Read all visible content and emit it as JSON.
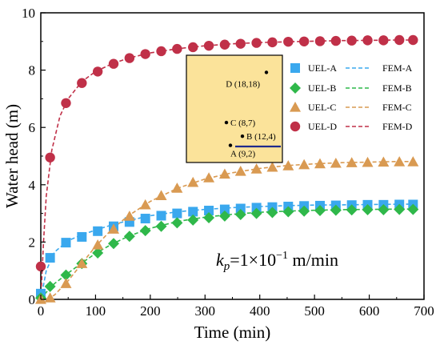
{
  "chart_data": {
    "type": "line",
    "title": "",
    "xlabel": "Time (min)",
    "ylabel": "Water head (m)",
    "xlim": [
      0,
      700
    ],
    "ylim": [
      0,
      10
    ],
    "xticks": [
      0,
      100,
      200,
      300,
      400,
      500,
      600,
      700
    ],
    "yticks": [
      0,
      2,
      4,
      6,
      8,
      10
    ],
    "legend_position": "top-right",
    "grid": false,
    "annotation": {
      "k": "k",
      "sub": "p",
      "text": "=1×10",
      "exp": "−1",
      "unit": " m/min"
    },
    "inset": {
      "points": [
        {
          "label": "D (18,18)",
          "x": 18,
          "y": 18
        },
        {
          "label": "C (8,7)",
          "x": 8,
          "y": 7
        },
        {
          "label": "B (12,4)",
          "x": 12,
          "y": 4
        },
        {
          "label": "A (9,2)",
          "x": 9,
          "y": 2
        }
      ]
    },
    "series": [
      {
        "name": "UEL-A",
        "kind": "marker",
        "marker": "square",
        "color": "#3aa8ee",
        "x": [
          0,
          17,
          46,
          75,
          104,
          133,
          162,
          191,
          220,
          249,
          278,
          307,
          336,
          365,
          394,
          423,
          452,
          481,
          510,
          539,
          568,
          597,
          626,
          655,
          680
        ],
        "y": [
          0.2,
          1.45,
          1.98,
          2.18,
          2.38,
          2.55,
          2.7,
          2.82,
          2.92,
          3.0,
          3.06,
          3.1,
          3.14,
          3.17,
          3.2,
          3.22,
          3.24,
          3.26,
          3.27,
          3.28,
          3.29,
          3.3,
          3.3,
          3.31,
          3.31
        ]
      },
      {
        "name": "UEL-B",
        "kind": "marker",
        "marker": "diamond",
        "color": "#2fb84a",
        "x": [
          0,
          17,
          46,
          75,
          104,
          133,
          162,
          191,
          220,
          249,
          278,
          307,
          336,
          365,
          394,
          423,
          452,
          481,
          510,
          539,
          568,
          597,
          626,
          655,
          680
        ],
        "y": [
          0.05,
          0.45,
          0.85,
          1.25,
          1.62,
          1.95,
          2.2,
          2.4,
          2.55,
          2.67,
          2.77,
          2.85,
          2.91,
          2.96,
          3.0,
          3.03,
          3.06,
          3.08,
          3.1,
          3.11,
          3.12,
          3.13,
          3.13,
          3.14,
          3.14
        ]
      },
      {
        "name": "UEL-C",
        "kind": "marker",
        "marker": "triangle",
        "color": "#d99a52",
        "x": [
          0,
          17,
          46,
          75,
          104,
          133,
          162,
          191,
          220,
          249,
          278,
          307,
          336,
          365,
          394,
          423,
          452,
          481,
          510,
          539,
          568,
          597,
          626,
          655,
          680
        ],
        "y": [
          0.0,
          0.05,
          0.55,
          1.25,
          1.9,
          2.45,
          2.9,
          3.3,
          3.62,
          3.88,
          4.08,
          4.24,
          4.37,
          4.47,
          4.55,
          4.61,
          4.66,
          4.7,
          4.73,
          4.75,
          4.77,
          4.78,
          4.79,
          4.8,
          4.8
        ]
      },
      {
        "name": "UEL-D",
        "kind": "marker",
        "marker": "circle",
        "color": "#c03048",
        "x": [
          0,
          17,
          46,
          75,
          104,
          133,
          162,
          191,
          220,
          249,
          278,
          307,
          336,
          365,
          394,
          423,
          452,
          481,
          510,
          539,
          568,
          597,
          626,
          655,
          680
        ],
        "y": [
          1.15,
          4.95,
          6.85,
          7.55,
          7.95,
          8.22,
          8.42,
          8.56,
          8.66,
          8.74,
          8.8,
          8.85,
          8.89,
          8.92,
          8.95,
          8.97,
          8.99,
          9.0,
          9.01,
          9.02,
          9.03,
          9.04,
          9.04,
          9.05,
          9.05
        ]
      },
      {
        "name": "FEM-A",
        "kind": "line",
        "color": "#3aa8ee",
        "x": [
          0,
          10,
          25,
          50,
          75,
          100,
          130,
          160,
          200,
          250,
          300,
          350,
          400,
          450,
          500,
          550,
          600,
          650,
          680
        ],
        "y": [
          0.0,
          1.0,
          1.65,
          2.05,
          2.25,
          2.42,
          2.6,
          2.75,
          2.92,
          3.06,
          3.14,
          3.2,
          3.24,
          3.27,
          3.29,
          3.3,
          3.31,
          3.32,
          3.32
        ]
      },
      {
        "name": "FEM-B",
        "kind": "line",
        "color": "#2fb84a",
        "x": [
          0,
          10,
          25,
          50,
          75,
          100,
          130,
          160,
          200,
          250,
          300,
          350,
          400,
          450,
          500,
          550,
          600,
          650,
          680
        ],
        "y": [
          0.0,
          0.25,
          0.55,
          0.92,
          1.27,
          1.6,
          1.93,
          2.2,
          2.48,
          2.72,
          2.87,
          2.97,
          3.04,
          3.08,
          3.11,
          3.13,
          3.14,
          3.15,
          3.15
        ]
      },
      {
        "name": "FEM-C",
        "kind": "line",
        "color": "#d99a52",
        "x": [
          0,
          10,
          25,
          50,
          75,
          100,
          130,
          160,
          200,
          250,
          300,
          350,
          400,
          450,
          500,
          550,
          600,
          650,
          680
        ],
        "y": [
          0.0,
          0.0,
          0.15,
          0.65,
          1.25,
          1.85,
          2.45,
          2.92,
          3.42,
          3.88,
          4.2,
          4.42,
          4.57,
          4.67,
          4.73,
          4.77,
          4.79,
          4.81,
          4.81
        ]
      },
      {
        "name": "FEM-D",
        "kind": "line",
        "color": "#c03048",
        "x": [
          0,
          5,
          10,
          20,
          35,
          50,
          75,
          100,
          130,
          160,
          200,
          250,
          300,
          350,
          400,
          450,
          500,
          550,
          600,
          650,
          680
        ],
        "y": [
          0.0,
          2.0,
          3.6,
          5.2,
          6.4,
          7.0,
          7.6,
          7.95,
          8.22,
          8.42,
          8.6,
          8.75,
          8.85,
          8.92,
          8.96,
          8.99,
          9.01,
          9.03,
          9.04,
          9.05,
          9.05
        ]
      }
    ]
  }
}
